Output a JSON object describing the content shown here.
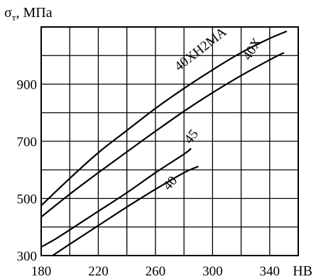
{
  "chart_data": {
    "type": "line",
    "title": "",
    "ylabel": "σ",
    "ylabel_subscript": "т",
    "ylabel_unit": ", МПа",
    "xlabel": "НВ",
    "xlim": [
      180,
      360
    ],
    "ylim": [
      300,
      1100
    ],
    "grid": true,
    "x_ticks": [
      180,
      220,
      260,
      300,
      340
    ],
    "x_tick_labels": [
      "180",
      "220",
      "260",
      "300",
      "340"
    ],
    "y_ticks": [
      300,
      500,
      700,
      900
    ],
    "y_tick_labels": [
      "300",
      "500",
      "700",
      "900"
    ],
    "series": [
      {
        "name": "40ХН2МА",
        "x": [
          180,
          200,
          220,
          240,
          260,
          280,
          300,
          320,
          340,
          352
        ],
        "y": [
          475,
          570,
          660,
          738,
          815,
          885,
          950,
          1010,
          1060,
          1085
        ]
      },
      {
        "name": "40Х",
        "x": [
          180,
          200,
          220,
          240,
          260,
          280,
          300,
          320,
          340,
          350
        ],
        "y": [
          435,
          515,
          590,
          663,
          735,
          805,
          870,
          930,
          985,
          1010
        ]
      },
      {
        "name": "45",
        "x": [
          180,
          190,
          200,
          220,
          240,
          260,
          280,
          285
        ],
        "y": [
          330,
          358,
          390,
          455,
          520,
          590,
          655,
          675
        ]
      },
      {
        "name": "40",
        "x": [
          188,
          200,
          220,
          240,
          260,
          280,
          290
        ],
        "y": [
          300,
          340,
          405,
          470,
          532,
          590,
          612
        ]
      }
    ]
  }
}
